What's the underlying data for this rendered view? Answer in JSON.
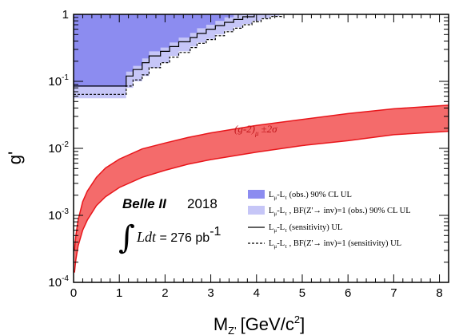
{
  "chart_data": {
    "type": "area",
    "xlabel": "M",
    "xlabel_sub": "Z'",
    "xlabel_units": "[GeV/c",
    "xlabel_units_sup": "2",
    "xlabel_units_end": "]",
    "ylabel": "g'",
    "xlim": [
      0,
      8.2
    ],
    "ylim": [
      0.0001,
      1
    ],
    "yscale": "log",
    "xticks": [
      0,
      1,
      2,
      3,
      4,
      5,
      6,
      7,
      8
    ],
    "ytick_labels": [
      {
        "value": 0.0001,
        "base": "10",
        "exp": "-4"
      },
      {
        "value": 0.001,
        "base": "10",
        "exp": "-3"
      },
      {
        "value": 0.01,
        "base": "10",
        "exp": "-2"
      },
      {
        "value": 0.1,
        "base": "10",
        "exp": "-1"
      },
      {
        "value": 1,
        "base": "1",
        "exp": ""
      }
    ],
    "series": [
      {
        "name": "Lμ-Lτ (obs.) 90% CL UL",
        "kind": "step-fill",
        "color": "#8c8cf0",
        "x": [
          0,
          0.2,
          0.5,
          1.1,
          1.15,
          1.3,
          1.5,
          1.65,
          1.9,
          2.1,
          2.3,
          2.55,
          2.7,
          2.9,
          3.1,
          3.3,
          3.5
        ],
        "y": [
          0.083,
          0.083,
          0.083,
          0.083,
          0.14,
          0.17,
          0.22,
          0.28,
          0.32,
          0.38,
          0.45,
          0.53,
          0.62,
          0.7,
          0.8,
          0.9,
          1.0
        ]
      },
      {
        "name": "Lμ-Lτ , BF(Z'→ inv)=1 (obs.) 90% CL UL",
        "kind": "step-fill",
        "color": "#c6c6f7",
        "x": [
          0,
          0.2,
          0.5,
          1.1,
          1.15,
          1.3,
          1.5,
          1.65,
          1.9,
          2.1,
          2.3,
          2.55,
          2.7,
          2.9,
          3.1,
          3.3,
          3.5,
          3.7,
          3.9,
          4.1,
          4.3,
          4.5
        ],
        "y": [
          0.056,
          0.056,
          0.056,
          0.056,
          0.08,
          0.1,
          0.12,
          0.16,
          0.19,
          0.24,
          0.28,
          0.33,
          0.38,
          0.43,
          0.5,
          0.57,
          0.64,
          0.72,
          0.8,
          0.88,
          0.95,
          1.0
        ]
      },
      {
        "name": "Lμ-Lτ (sensitivity) UL",
        "kind": "step-line",
        "dash": "solid",
        "color": "#000000",
        "x": [
          0,
          0.2,
          0.5,
          1.1,
          1.15,
          1.3,
          1.5,
          1.65,
          1.9,
          2.1,
          2.3,
          2.55,
          2.7,
          2.9,
          3.1,
          3.3,
          3.5,
          3.7,
          3.95
        ],
        "y": [
          0.085,
          0.085,
          0.085,
          0.085,
          0.12,
          0.15,
          0.19,
          0.24,
          0.28,
          0.33,
          0.39,
          0.45,
          0.52,
          0.6,
          0.68,
          0.76,
          0.84,
          0.92,
          1.0
        ]
      },
      {
        "name": "Lμ-Lτ , BF(Z'→ inv)=1 (sensitivity) UL",
        "kind": "step-line",
        "dash": "dashed",
        "color": "#000000",
        "x": [
          0,
          0.2,
          0.5,
          1.1,
          1.15,
          1.3,
          1.5,
          1.65,
          1.9,
          2.1,
          2.3,
          2.55,
          2.7,
          2.9,
          3.1,
          3.3,
          3.5,
          3.7,
          3.9,
          4.1,
          4.3,
          4.55
        ],
        "y": [
          0.064,
          0.064,
          0.064,
          0.064,
          0.085,
          0.105,
          0.125,
          0.16,
          0.19,
          0.23,
          0.27,
          0.32,
          0.37,
          0.42,
          0.48,
          0.55,
          0.62,
          0.7,
          0.78,
          0.86,
          0.93,
          1.0
        ]
      },
      {
        "name": "(g-2)μ ±2σ",
        "kind": "band",
        "color": "#f46b6b",
        "edge": "#e8161b",
        "x": [
          0.02,
          0.05,
          0.1,
          0.2,
          0.3,
          0.5,
          0.7,
          1.0,
          1.5,
          2.0,
          2.5,
          3.0,
          4.0,
          5.0,
          6.0,
          7.0,
          8.2
        ],
        "upper": [
          0.0003,
          0.0005,
          0.00085,
          0.0016,
          0.0023,
          0.0037,
          0.0051,
          0.0069,
          0.0098,
          0.012,
          0.0145,
          0.017,
          0.022,
          0.027,
          0.033,
          0.039,
          0.044
        ],
        "lower": [
          0.00014,
          0.00022,
          0.00035,
          0.0006,
          0.00085,
          0.0014,
          0.0019,
          0.0026,
          0.0037,
          0.0047,
          0.0058,
          0.0068,
          0.0088,
          0.011,
          0.013,
          0.016,
          0.018
        ]
      }
    ],
    "annotations": {
      "band_label_main": "(g-2)",
      "band_label_sub": "μ",
      "band_label_rest": "±2σ",
      "experiment": "Belle II",
      "year": "2018",
      "lumi_integral": "∫",
      "lumi_var": "Ldt",
      "lumi_eq": " = 276 pb",
      "lumi_exp": "-1"
    },
    "legend": {
      "placement": "lower-right",
      "entries": [
        {
          "label_a": "L",
          "sub_a": "μ",
          "label_b": "-L",
          "sub_b": "τ",
          "label_c": " (obs.) 90% CL UL",
          "style": "fill-dark"
        },
        {
          "label_a": "L",
          "sub_a": "μ",
          "label_b": "-L",
          "sub_b": "τ",
          "label_c": " , BF(Z'→ inv)=1 (obs.) 90% CL UL",
          "style": "fill-light"
        },
        {
          "label_a": "L",
          "sub_a": "μ",
          "label_b": "-L",
          "sub_b": "τ",
          "label_c": " (sensitivity) UL",
          "style": "line-solid"
        },
        {
          "label_a": "L",
          "sub_a": "μ",
          "label_b": "-L",
          "sub_b": "τ",
          "label_c": " , BF(Z'→ inv)=1 (sensitivity) UL",
          "style": "line-dashed"
        }
      ]
    },
    "grid": false,
    "colors": {
      "obs_fill": "#8c8cf0",
      "inv_fill": "#c6c6f7",
      "band_fill": "#f46b6b",
      "band_edge": "#e8161b",
      "band_text": "#c0161b"
    }
  }
}
